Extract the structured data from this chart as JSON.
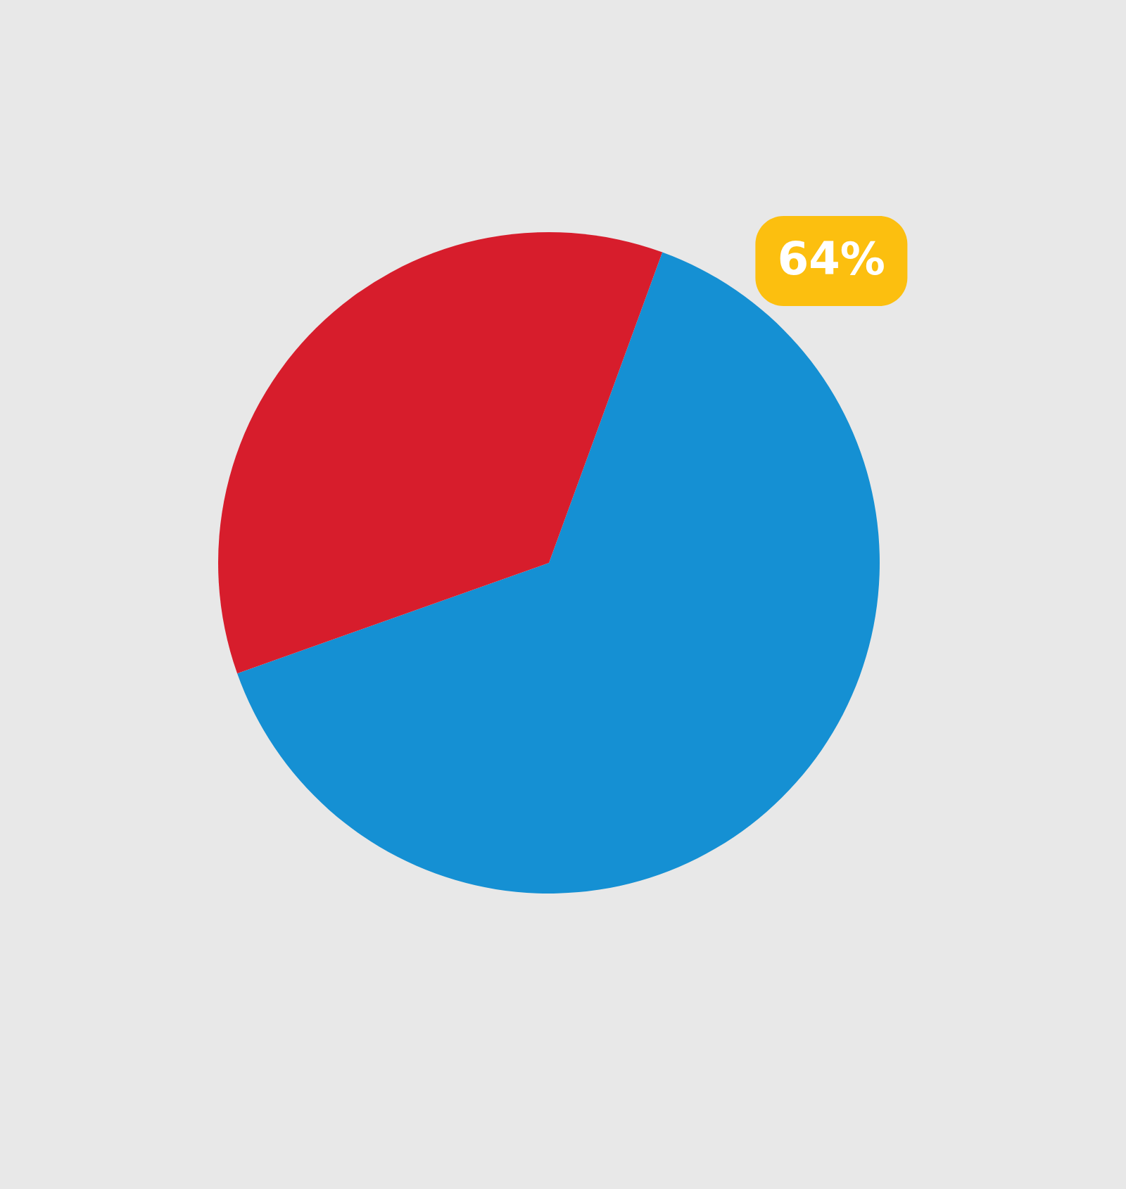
{
  "chart_data": {
    "type": "pie",
    "categories": [
      null,
      null
    ],
    "values": [
      64,
      36
    ],
    "colors": [
      "#1590d3",
      "#d71d2c"
    ],
    "value_labels": [
      "64%",
      null
    ]
  }
}
